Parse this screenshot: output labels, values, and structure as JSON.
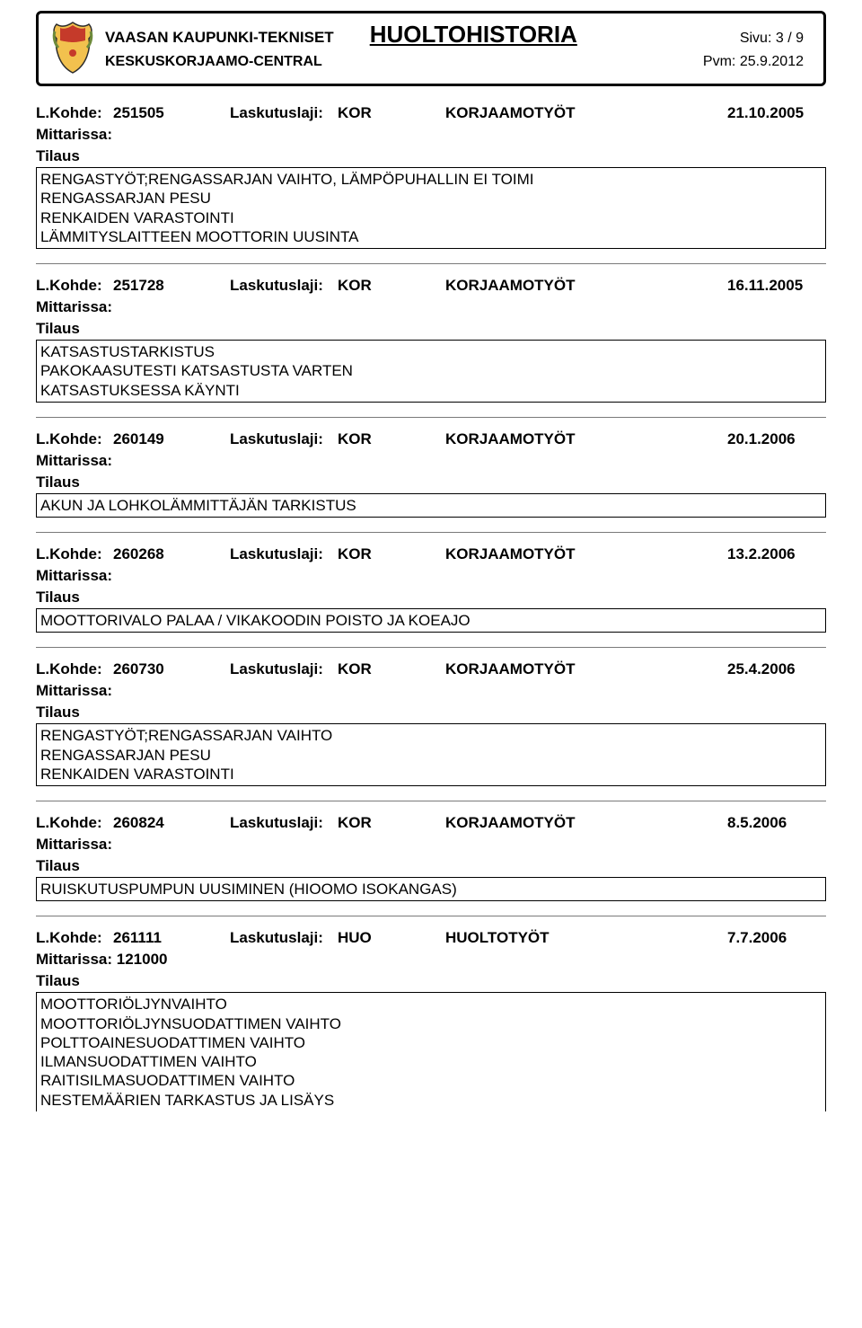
{
  "header": {
    "org_line1": "VAASAN KAUPUNKI-TEKNISET",
    "org_line2": "KESKUSKORJAAMO-CENTRAL",
    "title": "HUOLTOHISTORIA",
    "page_label": "Sivu:",
    "page_value": "3 / 9",
    "date_label": "Pvm:",
    "date_value": "25.9.2012"
  },
  "labels": {
    "lkohde": "L.Kohde:",
    "laskutuslaji": "Laskutuslaji:",
    "mittarissa": "Mittarissa:",
    "tilaus": "Tilaus"
  },
  "entries": [
    {
      "code": "251505",
      "laji": "KOR",
      "type": "KORJAAMOTYÖT",
      "date": "21.10.2005",
      "mittarissa": "",
      "desc": "RENGASTYÖT;RENGASSARJAN VAIHTO, LÄMPÖPUHALLIN EI TOIMI\nRENGASSARJAN PESU\nRENKAIDEN VARASTOINTI\nLÄMMITYSLAITTEEN MOOTTORIN UUSINTA"
    },
    {
      "code": "251728",
      "laji": "KOR",
      "type": "KORJAAMOTYÖT",
      "date": "16.11.2005",
      "mittarissa": "",
      "desc": "KATSASTUSTARKISTUS\nPAKOKAASUTESTI KATSASTUSTA VARTEN\nKATSASTUKSESSA KÄYNTI"
    },
    {
      "code": "260149",
      "laji": "KOR",
      "type": "KORJAAMOTYÖT",
      "date": "20.1.2006",
      "mittarissa": "",
      "desc": "AKUN JA LOHKOLÄMMITTÄJÄN TARKISTUS"
    },
    {
      "code": "260268",
      "laji": "KOR",
      "type": "KORJAAMOTYÖT",
      "date": "13.2.2006",
      "mittarissa": "",
      "desc": "MOOTTORIVALO PALAA / VIKAKOODIN POISTO JA KOEAJO"
    },
    {
      "code": "260730",
      "laji": "KOR",
      "type": "KORJAAMOTYÖT",
      "date": "25.4.2006",
      "mittarissa": "",
      "desc": "RENGASTYÖT;RENGASSARJAN VAIHTO\nRENGASSARJAN PESU\nRENKAIDEN VARASTOINTI"
    },
    {
      "code": "260824",
      "laji": "KOR",
      "type": "KORJAAMOTYÖT",
      "date": "8.5.2006",
      "mittarissa": "",
      "desc": "RUISKUTUSPUMPUN UUSIMINEN (HIOOMO ISOKANGAS)"
    },
    {
      "code": "261111",
      "laji": "HUO",
      "type": "HUOLTOTYÖT",
      "date": "7.7.2006",
      "mittarissa": "121000",
      "desc": "MOOTTORIÖLJYNVAIHTO\nMOOTTORIÖLJYNSUODATTIMEN VAIHTO\nPOLTTOAINESUODATTIMEN VAIHTO\nILMANSUODATTIMEN VAIHTO\nRAITISILMASUODATTIMEN VAIHTO\nNESTEMÄÄRIEN TARKASTUS JA LISÄYS",
      "no_bottom": true
    }
  ],
  "crest_colors": {
    "shield_top": "#c53a2a",
    "shield_bottom": "#f2c14e",
    "outline": "#2b2b2b",
    "leaf": "#6d8a3b"
  }
}
